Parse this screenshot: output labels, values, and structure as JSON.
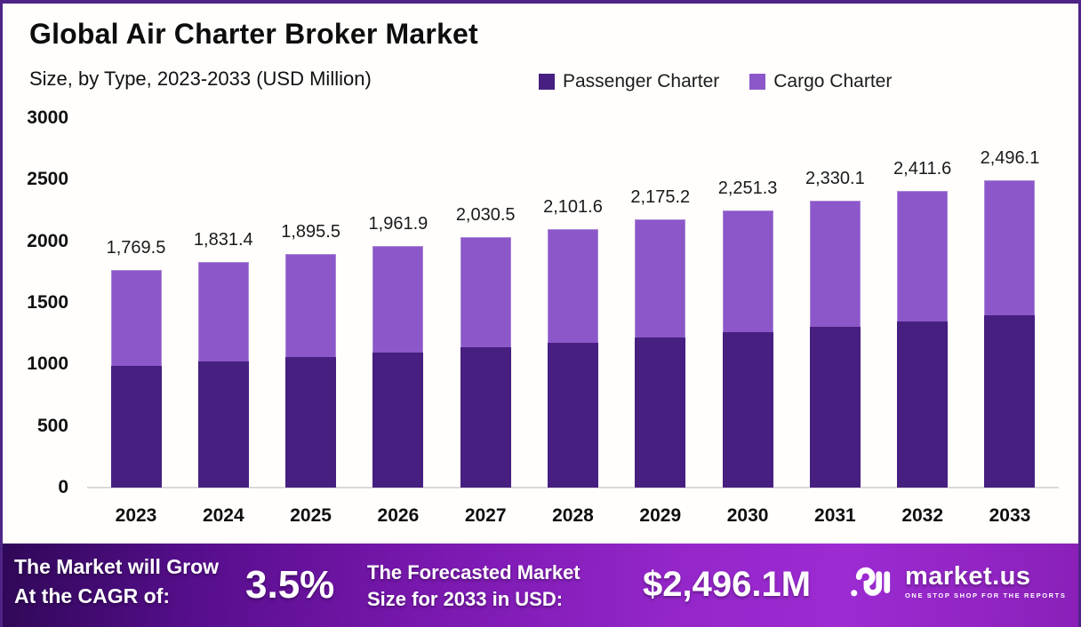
{
  "header": {
    "title": "Global Air Charter Broker Market",
    "subtitle": "Size, by Type, 2023-2033 (USD Million)"
  },
  "legend": [
    {
      "label": "Passenger Charter",
      "color": "#471f80"
    },
    {
      "label": "Cargo Charter",
      "color": "#8b57c9"
    }
  ],
  "chart_data": {
    "type": "bar",
    "stacked": true,
    "title": "Global Air Charter Broker Market",
    "subtitle": "Size, by Type, 2023-2033 (USD Million)",
    "categories": [
      "2023",
      "2024",
      "2025",
      "2026",
      "2027",
      "2028",
      "2029",
      "2030",
      "2031",
      "2032",
      "2033"
    ],
    "series": [
      {
        "name": "Passenger Charter",
        "color": "#471f80",
        "values": [
          990.9,
          1025.6,
          1061.5,
          1098.7,
          1137.1,
          1176.9,
          1218.1,
          1260.7,
          1304.9,
          1350.5,
          1397.8
        ]
      },
      {
        "name": "Cargo Charter",
        "color": "#8b57c9",
        "values": [
          778.6,
          805.8,
          834.0,
          863.2,
          893.4,
          924.7,
          957.1,
          990.6,
          1025.2,
          1061.1,
          1098.3
        ]
      }
    ],
    "series_values_estimated": true,
    "totals": [
      1769.5,
      1831.4,
      1895.5,
      1961.9,
      2030.5,
      2101.6,
      2175.2,
      2251.3,
      2330.1,
      2411.6,
      2496.1
    ],
    "total_labels": [
      "1,769.5",
      "1,831.4",
      "1,895.5",
      "1,961.9",
      "2,030.5",
      "2,101.6",
      "2,175.2",
      "2,251.3",
      "2,330.1",
      "2,411.6",
      "2,496.1"
    ],
    "ylim": [
      0,
      3000
    ],
    "yticks": [
      0,
      500,
      1000,
      1500,
      2000,
      2500,
      3000
    ],
    "grid": false,
    "legend_position": "top-right",
    "xlabel": "",
    "ylabel": ""
  },
  "footer": {
    "cagr_label_line1": "The Market will Grow",
    "cagr_label_line2": "At the CAGR of:",
    "cagr_value": "3.5%",
    "forecast_label_line1": "The Forecasted Market",
    "forecast_label_line2": "Size for 2033 in USD:",
    "forecast_value": "$2,496.1M",
    "brand": {
      "name": "market.us",
      "tagline": "ONE STOP SHOP FOR THE REPORTS"
    }
  },
  "colors": {
    "border": "#4f2487",
    "passenger": "#471f80",
    "cargo": "#8b57c9",
    "banner_left": "#2f0857",
    "banner_right": "#9c2bd2",
    "baseline": "#dadada"
  }
}
